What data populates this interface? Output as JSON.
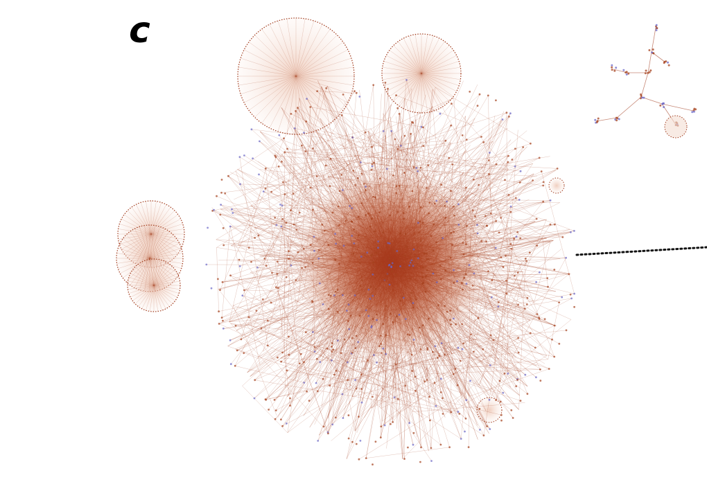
{
  "panel": {
    "label": "c"
  },
  "colors": {
    "edge": "#a0391a",
    "core": "#b2431f",
    "node_primary": "#a5421e",
    "node_secondary": "#6b68c8",
    "halo": "#f3ddd2",
    "connector": "#111111"
  }
}
